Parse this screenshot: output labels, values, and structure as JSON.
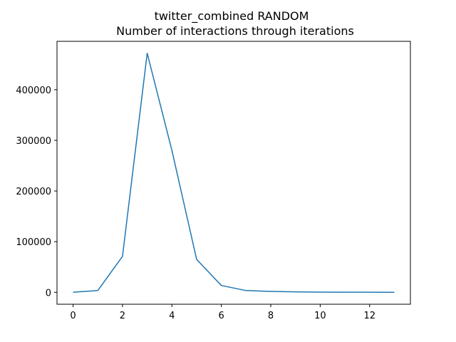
{
  "chart_data": {
    "type": "line",
    "title_lines": [
      "twitter_combined RANDOM",
      "Number of interactions through iterations"
    ],
    "xlabel": "",
    "ylabel": "",
    "x": [
      0,
      1,
      2,
      3,
      4,
      5,
      6,
      7,
      8,
      9,
      10,
      11,
      12,
      13
    ],
    "series": [
      {
        "values": [
          200,
          3500,
          71000,
          472000,
          280000,
          65000,
          13500,
          3500,
          1800,
          1000,
          500,
          300,
          200,
          100
        ],
        "color": "#1f77b4"
      }
    ],
    "xlim": [
      -0.65,
      13.65
    ],
    "ylim": [
      -23500,
      495500
    ],
    "xticks": [
      0,
      2,
      4,
      6,
      8,
      10,
      12
    ],
    "yticks": [
      0,
      100000,
      200000,
      300000,
      400000
    ],
    "xtick_labels": [
      "0",
      "2",
      "4",
      "6",
      "8",
      "10",
      "12"
    ],
    "ytick_labels": [
      "0",
      "100000",
      "200000",
      "300000",
      "400000"
    ],
    "grid": false,
    "legend": false
  }
}
